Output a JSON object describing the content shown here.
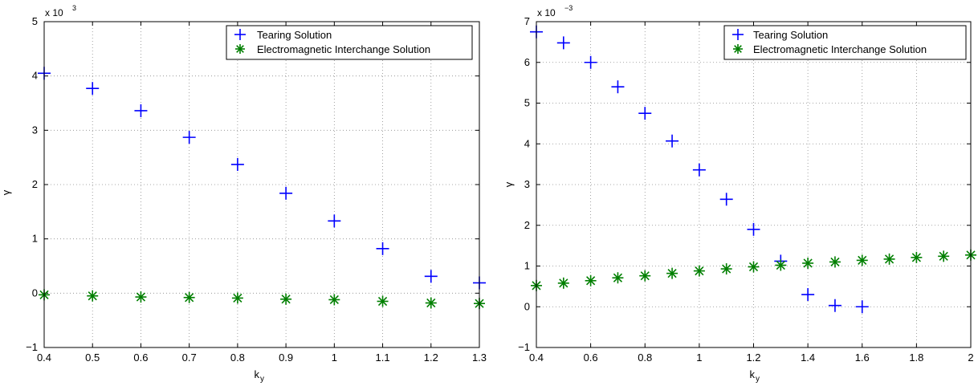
{
  "chart_data": [
    {
      "type": "scatter",
      "xlabel": "k",
      "xlabel_sub": "y",
      "ylabel": "γ",
      "exponent_label": "x 10",
      "exponent_power": "3",
      "xlim": [
        0.4,
        1.3
      ],
      "ylim": [
        -1,
        5
      ],
      "xticks": [
        0.4,
        0.5,
        0.6,
        0.7,
        0.8,
        0.9,
        1,
        1.1,
        1.2,
        1.3
      ],
      "xtick_labels": [
        "0.4",
        "0.5",
        "0.6",
        "0.7",
        "0.8",
        "0.9",
        "1",
        "1.1",
        "1.2",
        "1.3"
      ],
      "yticks": [
        -1,
        0,
        1,
        2,
        3,
        4,
        5
      ],
      "ytick_labels": [
        "−1",
        "0",
        "1",
        "2",
        "3",
        "4",
        "5"
      ],
      "grid": true,
      "legend_position": "top-right",
      "series": [
        {
          "name": "Tearing Solution",
          "marker": "plus",
          "color": "#0000ff",
          "x": [
            0.4,
            0.5,
            0.6,
            0.7,
            0.8,
            0.9,
            1.0,
            1.1,
            1.2,
            1.3
          ],
          "y": [
            4.05,
            3.77,
            3.36,
            2.87,
            2.37,
            1.84,
            1.33,
            0.82,
            0.31,
            0.19
          ]
        },
        {
          "name": "Electromagnetic Interchange Solution",
          "marker": "asterisk",
          "color": "#007f00",
          "x": [
            0.4,
            0.5,
            0.6,
            0.7,
            0.8,
            0.9,
            1.0,
            1.1,
            1.2,
            1.3
          ],
          "y": [
            -0.03,
            -0.05,
            -0.07,
            -0.08,
            -0.09,
            -0.11,
            -0.12,
            -0.15,
            -0.18,
            -0.19
          ]
        }
      ]
    },
    {
      "type": "scatter",
      "xlabel": "k",
      "xlabel_sub": "y",
      "ylabel": "γ",
      "exponent_label": "x 10",
      "exponent_power": "−3",
      "xlim": [
        0.4,
        2.0
      ],
      "ylim": [
        -1,
        7
      ],
      "xticks": [
        0.4,
        0.6,
        0.8,
        1.0,
        1.2,
        1.4,
        1.6,
        1.8,
        2.0
      ],
      "xtick_labels": [
        "0.4",
        "0.6",
        "0.8",
        "1",
        "1.2",
        "1.4",
        "1.6",
        "1.8",
        "2"
      ],
      "yticks": [
        -1,
        0,
        1,
        2,
        3,
        4,
        5,
        6,
        7
      ],
      "ytick_labels": [
        "−1",
        "0",
        "1",
        "2",
        "3",
        "4",
        "5",
        "6",
        "7"
      ],
      "grid": true,
      "legend_position": "top-right",
      "series": [
        {
          "name": "Tearing Solution",
          "marker": "plus",
          "color": "#0000ff",
          "x": [
            0.4,
            0.5,
            0.6,
            0.7,
            0.8,
            0.9,
            1.0,
            1.1,
            1.2,
            1.3,
            1.4,
            1.5,
            1.6
          ],
          "y": [
            6.75,
            6.48,
            6.0,
            5.4,
            4.75,
            4.07,
            3.36,
            2.64,
            1.9,
            1.12,
            0.3,
            0.03,
            0.0
          ]
        },
        {
          "name": "Electromagnetic Interchange Solution",
          "marker": "asterisk",
          "color": "#007f00",
          "x": [
            0.4,
            0.5,
            0.6,
            0.7,
            0.8,
            0.9,
            1.0,
            1.1,
            1.2,
            1.3,
            1.4,
            1.5,
            1.6,
            1.7,
            1.8,
            1.9,
            2.0
          ],
          "y": [
            0.52,
            0.58,
            0.64,
            0.71,
            0.76,
            0.82,
            0.88,
            0.93,
            0.98,
            1.02,
            1.07,
            1.1,
            1.14,
            1.17,
            1.21,
            1.24,
            1.27
          ]
        }
      ]
    }
  ]
}
